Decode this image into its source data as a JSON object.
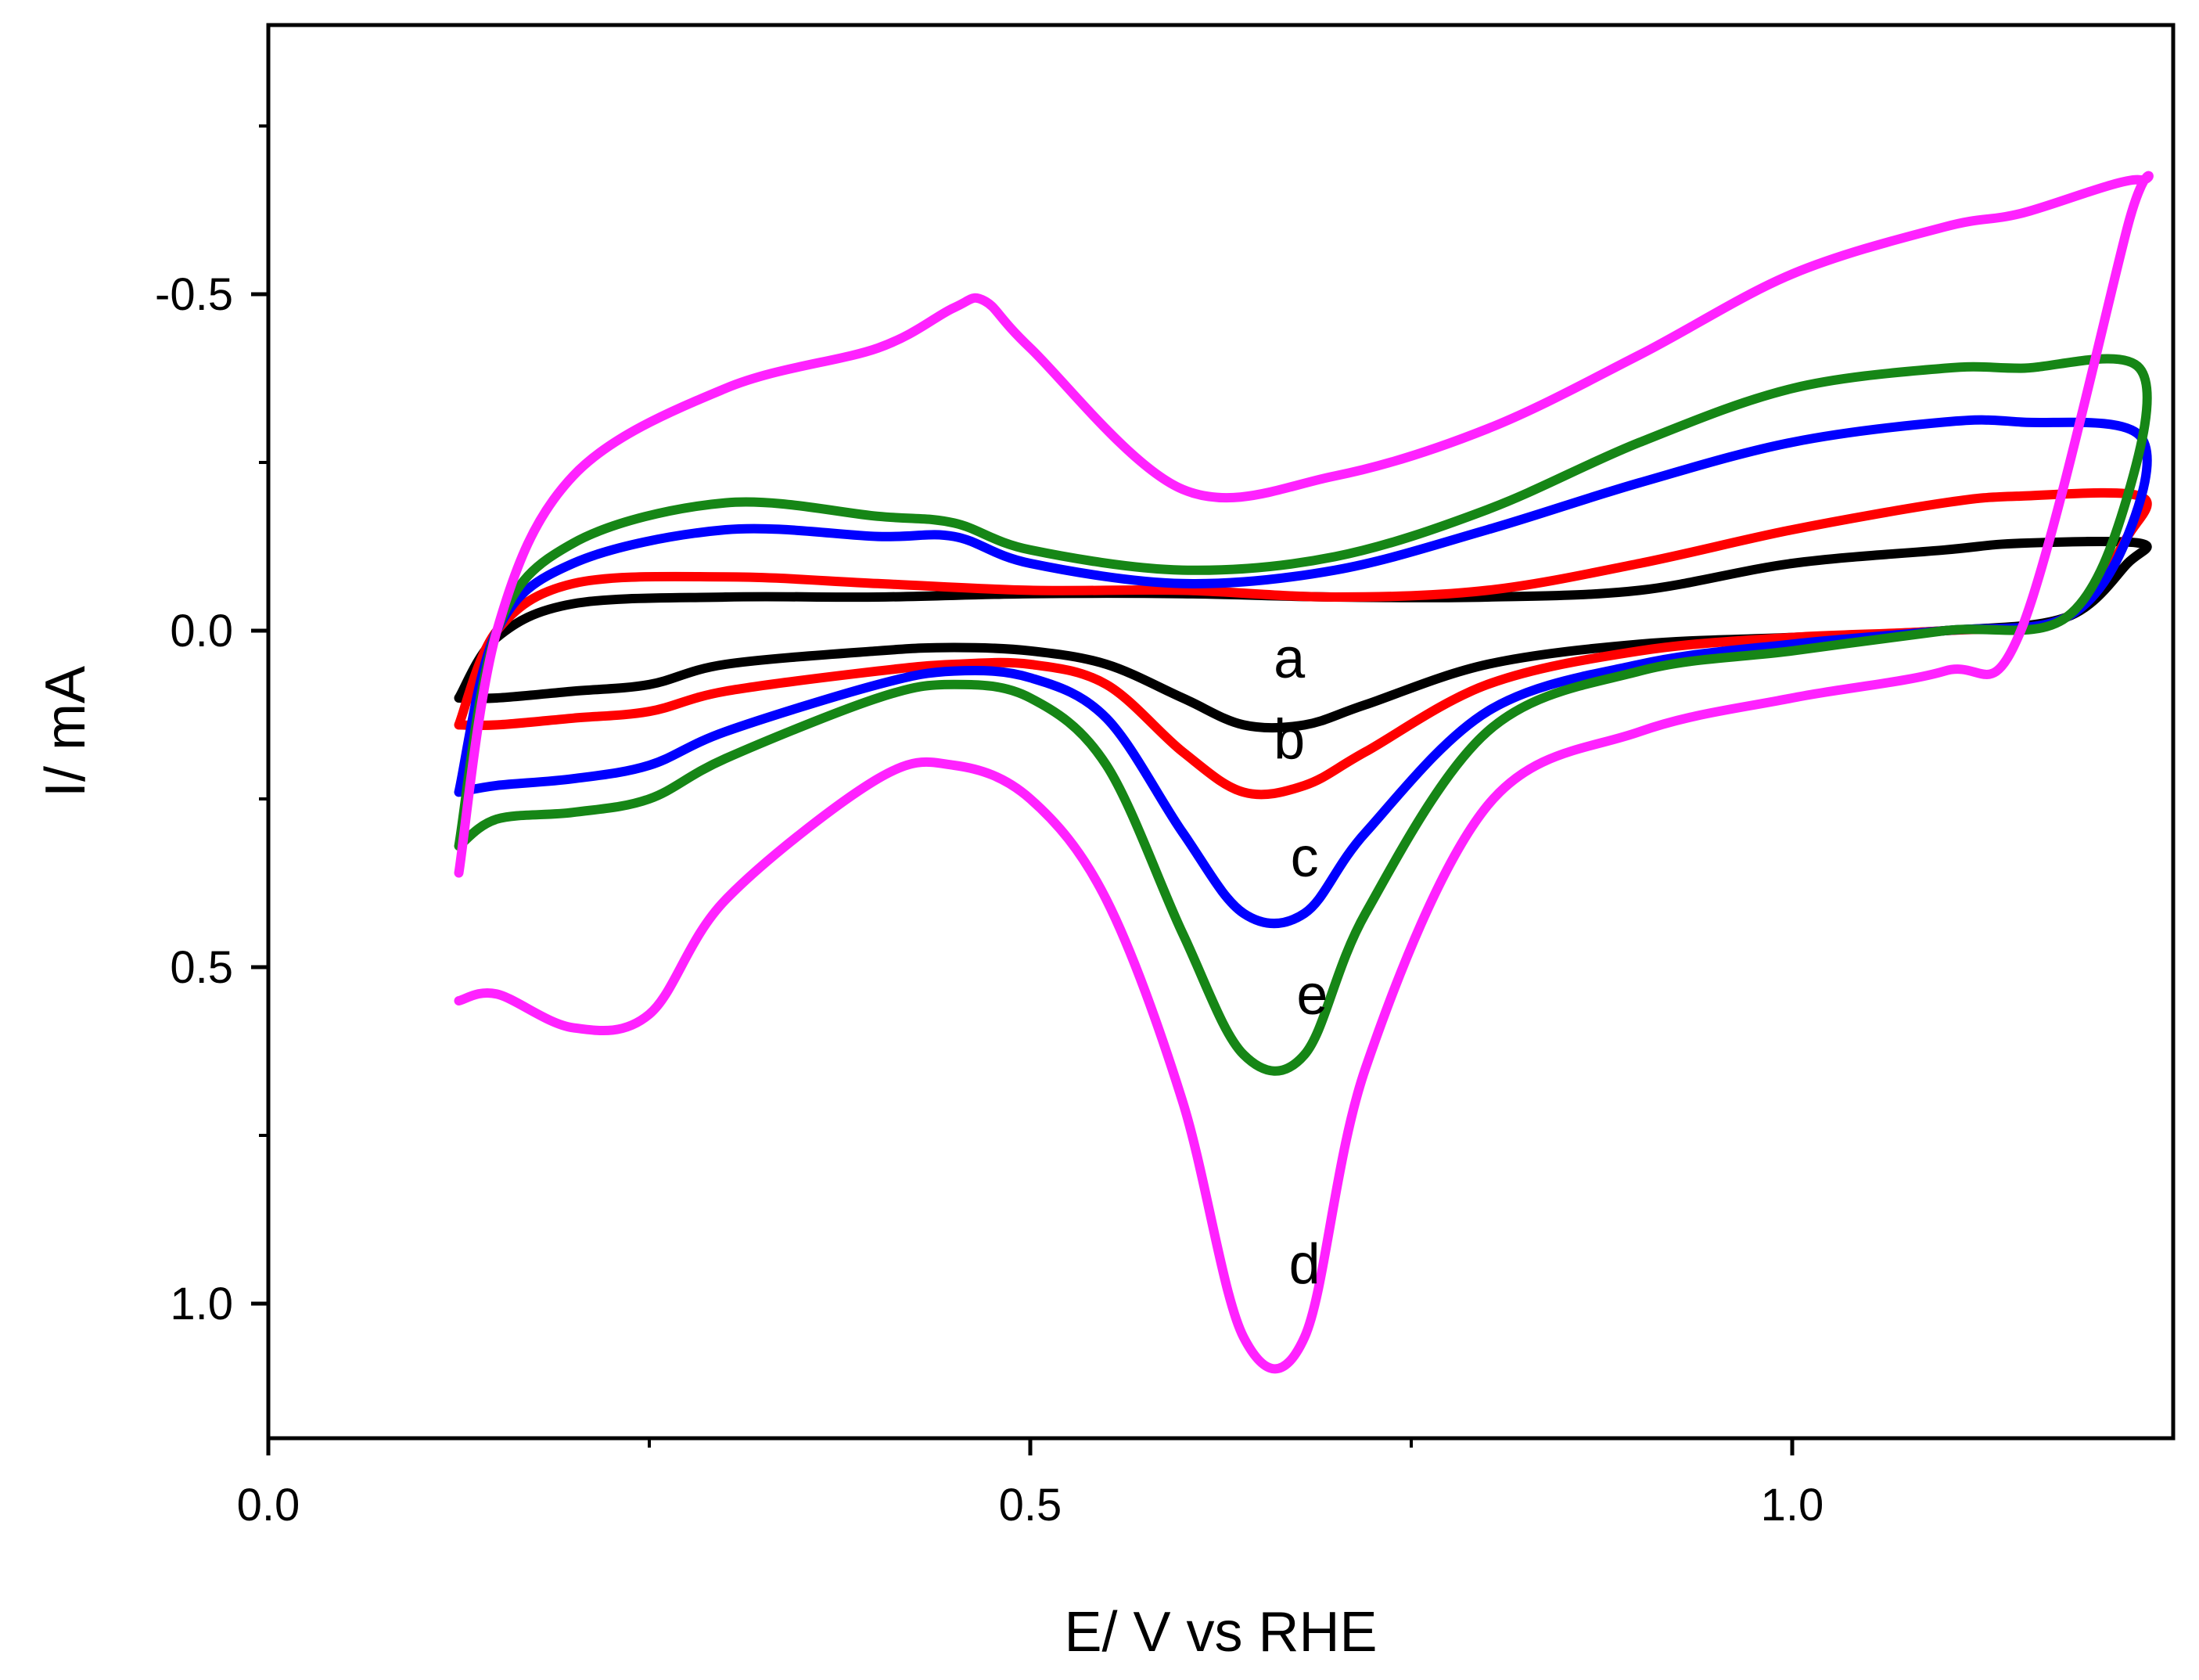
{
  "chart_data": {
    "type": "line",
    "title": "",
    "xlabel": "E/ V vs RHE",
    "ylabel": "I/ mA",
    "xlim": [
      0.0,
      1.25
    ],
    "ylim": [
      1.2,
      -0.9
    ],
    "y_axis_inverted": true,
    "x_ticks": [
      0.0,
      0.5,
      1.0
    ],
    "x_tick_labels": [
      "0.0",
      "0.5",
      "1.0"
    ],
    "y_ticks": [
      -0.5,
      0.0,
      0.5,
      1.0
    ],
    "y_tick_labels": [
      "-0.5",
      "0.0",
      "0.5",
      "1.0"
    ],
    "grid": false,
    "series": [
      {
        "name": "a",
        "label": "a",
        "color": "#000000",
        "x": [
          0.125,
          0.15,
          0.2,
          0.3,
          0.4,
          0.5,
          0.6,
          0.7,
          0.8,
          0.9,
          1.0,
          1.1,
          1.15,
          1.228,
          1.22,
          1.18,
          1.1,
          1.0,
          0.9,
          0.8,
          0.72,
          0.68,
          0.64,
          0.6,
          0.55,
          0.5,
          0.45,
          0.4,
          0.3,
          0.25,
          0.2,
          0.15,
          0.125
        ],
        "y": [
          0.1,
          0.01,
          -0.04,
          -0.05,
          -0.05,
          -0.055,
          -0.055,
          -0.05,
          -0.05,
          -0.06,
          -0.1,
          -0.12,
          -0.13,
          -0.13,
          -0.1,
          -0.02,
          0.0,
          0.01,
          0.02,
          0.05,
          0.11,
          0.14,
          0.14,
          0.1,
          0.05,
          0.03,
          0.025,
          0.03,
          0.05,
          0.08,
          0.09,
          0.1,
          0.1
        ]
      },
      {
        "name": "b",
        "label": "b",
        "color": "#ff0000",
        "x": [
          0.125,
          0.15,
          0.2,
          0.3,
          0.4,
          0.5,
          0.6,
          0.7,
          0.8,
          0.9,
          1.0,
          1.1,
          1.15,
          1.228,
          1.22,
          1.18,
          1.1,
          1.0,
          0.9,
          0.8,
          0.72,
          0.68,
          0.64,
          0.6,
          0.55,
          0.5,
          0.45,
          0.4,
          0.3,
          0.25,
          0.2,
          0.15,
          0.125
        ],
        "y": [
          0.14,
          0.0,
          -0.07,
          -0.08,
          -0.07,
          -0.06,
          -0.06,
          -0.05,
          -0.06,
          -0.1,
          -0.15,
          -0.19,
          -0.2,
          -0.2,
          -0.14,
          -0.02,
          0.0,
          0.01,
          0.03,
          0.08,
          0.18,
          0.23,
          0.24,
          0.18,
          0.08,
          0.05,
          0.05,
          0.06,
          0.09,
          0.12,
          0.13,
          0.14,
          0.14
        ]
      },
      {
        "name": "c",
        "label": "c",
        "color": "#0000ff",
        "x": [
          0.125,
          0.15,
          0.2,
          0.3,
          0.4,
          0.45,
          0.5,
          0.6,
          0.7,
          0.8,
          0.9,
          1.0,
          1.1,
          1.15,
          1.228,
          1.22,
          1.18,
          1.1,
          1.0,
          0.9,
          0.8,
          0.72,
          0.68,
          0.64,
          0.6,
          0.55,
          0.5,
          0.45,
          0.4,
          0.3,
          0.25,
          0.2,
          0.15,
          0.125
        ],
        "y": [
          0.24,
          0.0,
          -0.1,
          -0.15,
          -0.14,
          -0.14,
          -0.1,
          -0.07,
          -0.09,
          -0.15,
          -0.22,
          -0.28,
          -0.31,
          -0.31,
          -0.29,
          -0.14,
          -0.02,
          0.0,
          0.02,
          0.05,
          0.12,
          0.3,
          0.42,
          0.42,
          0.3,
          0.13,
          0.07,
          0.06,
          0.08,
          0.15,
          0.2,
          0.22,
          0.23,
          0.24
        ]
      },
      {
        "name": "e",
        "label": "e",
        "color": "#168616",
        "x": [
          0.125,
          0.15,
          0.2,
          0.3,
          0.4,
          0.45,
          0.5,
          0.6,
          0.7,
          0.8,
          0.9,
          1.0,
          1.1,
          1.15,
          1.228,
          1.22,
          1.18,
          1.1,
          1.0,
          0.9,
          0.8,
          0.72,
          0.68,
          0.64,
          0.6,
          0.55,
          0.5,
          0.45,
          0.4,
          0.3,
          0.25,
          0.2,
          0.15,
          0.125
        ],
        "y": [
          0.32,
          0.0,
          -0.13,
          -0.19,
          -0.17,
          -0.16,
          -0.12,
          -0.09,
          -0.11,
          -0.18,
          -0.28,
          -0.36,
          -0.39,
          -0.39,
          -0.39,
          -0.2,
          -0.02,
          0.0,
          0.03,
          0.06,
          0.15,
          0.42,
          0.63,
          0.63,
          0.45,
          0.2,
          0.1,
          0.08,
          0.1,
          0.19,
          0.25,
          0.27,
          0.28,
          0.32
        ]
      },
      {
        "name": "d",
        "label": "d",
        "color": "#ff22ff",
        "x": [
          0.125,
          0.15,
          0.2,
          0.3,
          0.4,
          0.45,
          0.47,
          0.5,
          0.6,
          0.7,
          0.8,
          0.9,
          1.0,
          1.1,
          1.15,
          1.228,
          1.22,
          1.15,
          1.1,
          1.0,
          0.9,
          0.8,
          0.72,
          0.68,
          0.64,
          0.6,
          0.55,
          0.5,
          0.45,
          0.4,
          0.3,
          0.25,
          0.2,
          0.15,
          0.125
        ],
        "y": [
          0.36,
          0.0,
          -0.23,
          -0.36,
          -0.42,
          -0.48,
          -0.49,
          -0.42,
          -0.21,
          -0.23,
          -0.3,
          -0.41,
          -0.53,
          -0.6,
          -0.62,
          -0.67,
          -0.6,
          0.0,
          0.06,
          0.1,
          0.15,
          0.26,
          0.65,
          1.05,
          1.05,
          0.7,
          0.4,
          0.25,
          0.2,
          0.22,
          0.4,
          0.57,
          0.59,
          0.54,
          0.55
        ]
      }
    ],
    "annotations": [
      {
        "text": "a",
        "x": 0.67,
        "y": 0.07
      },
      {
        "text": "b",
        "x": 0.67,
        "y": 0.19
      },
      {
        "text": "c",
        "x": 0.68,
        "y": 0.365
      },
      {
        "text": "e",
        "x": 0.685,
        "y": 0.57
      },
      {
        "text": "d",
        "x": 0.68,
        "y": 0.97
      }
    ]
  }
}
